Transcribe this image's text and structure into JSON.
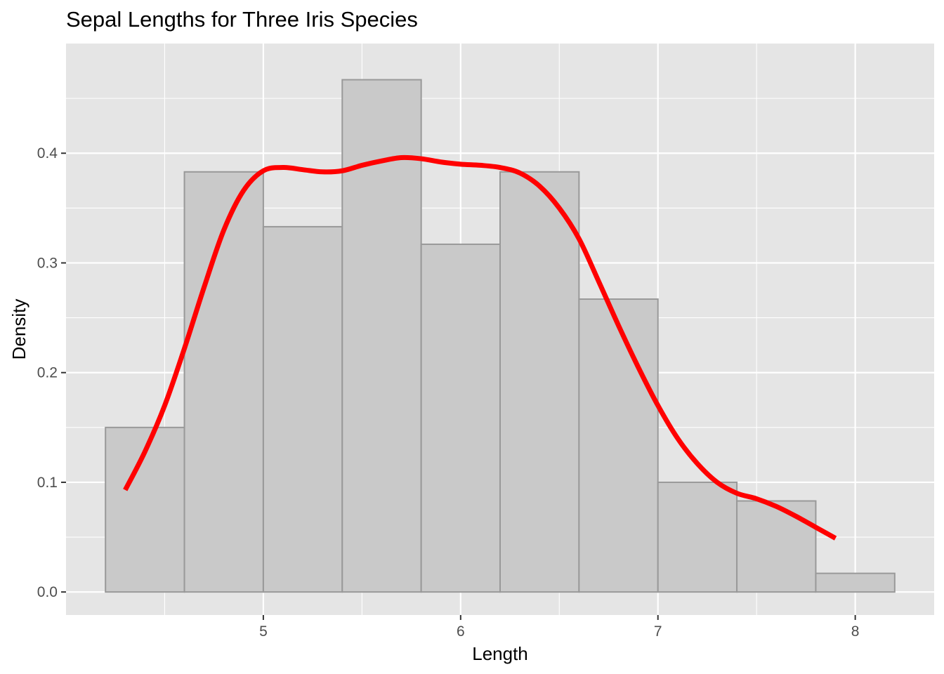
{
  "chart_data": {
    "type": "bar",
    "title": "Sepal Lengths for Three Iris Species",
    "xlabel": "Length",
    "ylabel": "Density",
    "xlim": [
      4.0,
      8.4
    ],
    "ylim": [
      -0.021,
      0.5
    ],
    "x_ticks": [
      5,
      6,
      7,
      8
    ],
    "x_tick_labels": [
      "5",
      "6",
      "7",
      "8"
    ],
    "y_ticks": [
      0.0,
      0.1,
      0.2,
      0.3,
      0.4
    ],
    "y_tick_labels": [
      "0.0",
      "0.1",
      "0.2",
      "0.3",
      "0.4"
    ],
    "grid": true,
    "histogram": {
      "bins": [
        {
          "x0": 4.2,
          "x1": 4.6,
          "density": 0.15
        },
        {
          "x0": 4.6,
          "x1": 5.0,
          "density": 0.383
        },
        {
          "x0": 5.0,
          "x1": 5.4,
          "density": 0.333
        },
        {
          "x0": 5.4,
          "x1": 5.8,
          "density": 0.467
        },
        {
          "x0": 5.8,
          "x1": 6.2,
          "density": 0.317
        },
        {
          "x0": 6.2,
          "x1": 6.6,
          "density": 0.383
        },
        {
          "x0": 6.6,
          "x1": 7.0,
          "density": 0.267
        },
        {
          "x0": 7.0,
          "x1": 7.4,
          "density": 0.1
        },
        {
          "x0": 7.4,
          "x1": 7.8,
          "density": 0.083
        },
        {
          "x0": 7.8,
          "x1": 8.2,
          "density": 0.017
        }
      ],
      "fill": "#c9c9c9",
      "stroke": "#999999"
    },
    "density_curve": {
      "color": "#ff0000",
      "x": [
        4.3,
        4.4,
        4.5,
        4.6,
        4.7,
        4.8,
        4.9,
        5.0,
        5.1,
        5.2,
        5.3,
        5.4,
        5.5,
        5.6,
        5.7,
        5.8,
        5.9,
        6.0,
        6.1,
        6.2,
        6.3,
        6.4,
        6.5,
        6.6,
        6.7,
        6.8,
        6.9,
        7.0,
        7.1,
        7.2,
        7.3,
        7.4,
        7.5,
        7.6,
        7.7,
        7.8,
        7.9
      ],
      "y": [
        0.093,
        0.128,
        0.17,
        0.222,
        0.278,
        0.33,
        0.366,
        0.384,
        0.387,
        0.385,
        0.383,
        0.384,
        0.389,
        0.393,
        0.396,
        0.395,
        0.392,
        0.39,
        0.389,
        0.387,
        0.382,
        0.37,
        0.35,
        0.322,
        0.283,
        0.243,
        0.205,
        0.17,
        0.14,
        0.117,
        0.1,
        0.09,
        0.085,
        0.078,
        0.069,
        0.059,
        0.049
      ]
    },
    "colors": {
      "panel_background": "#e5e5e5",
      "grid_major": "#ffffff",
      "axis_text": "#4d4d4d"
    }
  }
}
